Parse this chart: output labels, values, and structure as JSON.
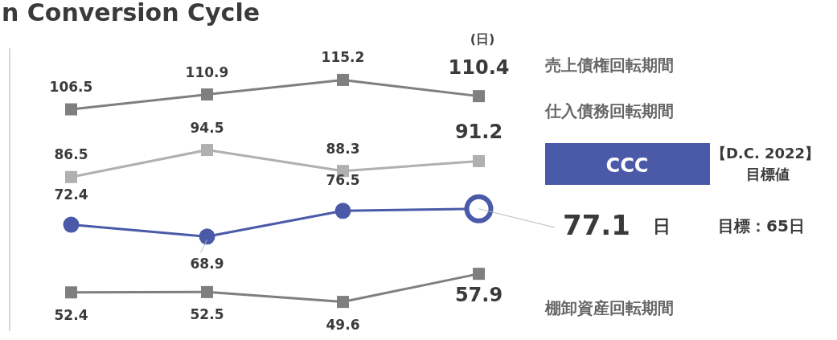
{
  "chart_data": {
    "type": "line",
    "title": "n Conversion Cycle",
    "categories": [
      null,
      null,
      null,
      null
    ],
    "series": [
      {
        "name": "売上債権回転期間",
        "color": "#7f7f7f",
        "marker": "square",
        "values": [
          106.5,
          110.9,
          115.2,
          110.4
        ]
      },
      {
        "name": "仕入債務回転期間",
        "color": "#b0b0b0",
        "marker": "square",
        "values": [
          86.5,
          94.5,
          88.3,
          91.2
        ]
      },
      {
        "name": "CCC",
        "color": "#4a5aa8",
        "marker": "circle",
        "values": [
          72.4,
          68.9,
          76.5,
          77.1
        ]
      },
      {
        "name": "棚卸資産回転期間",
        "color": "#7f7f7f",
        "marker": "square",
        "values": [
          52.4,
          52.5,
          49.6,
          57.9
        ]
      }
    ],
    "data_labels": true,
    "annotations": [
      "(日)",
      "日",
      "【D.C. 2022】",
      "目標値",
      "目標：65日"
    ]
  }
}
